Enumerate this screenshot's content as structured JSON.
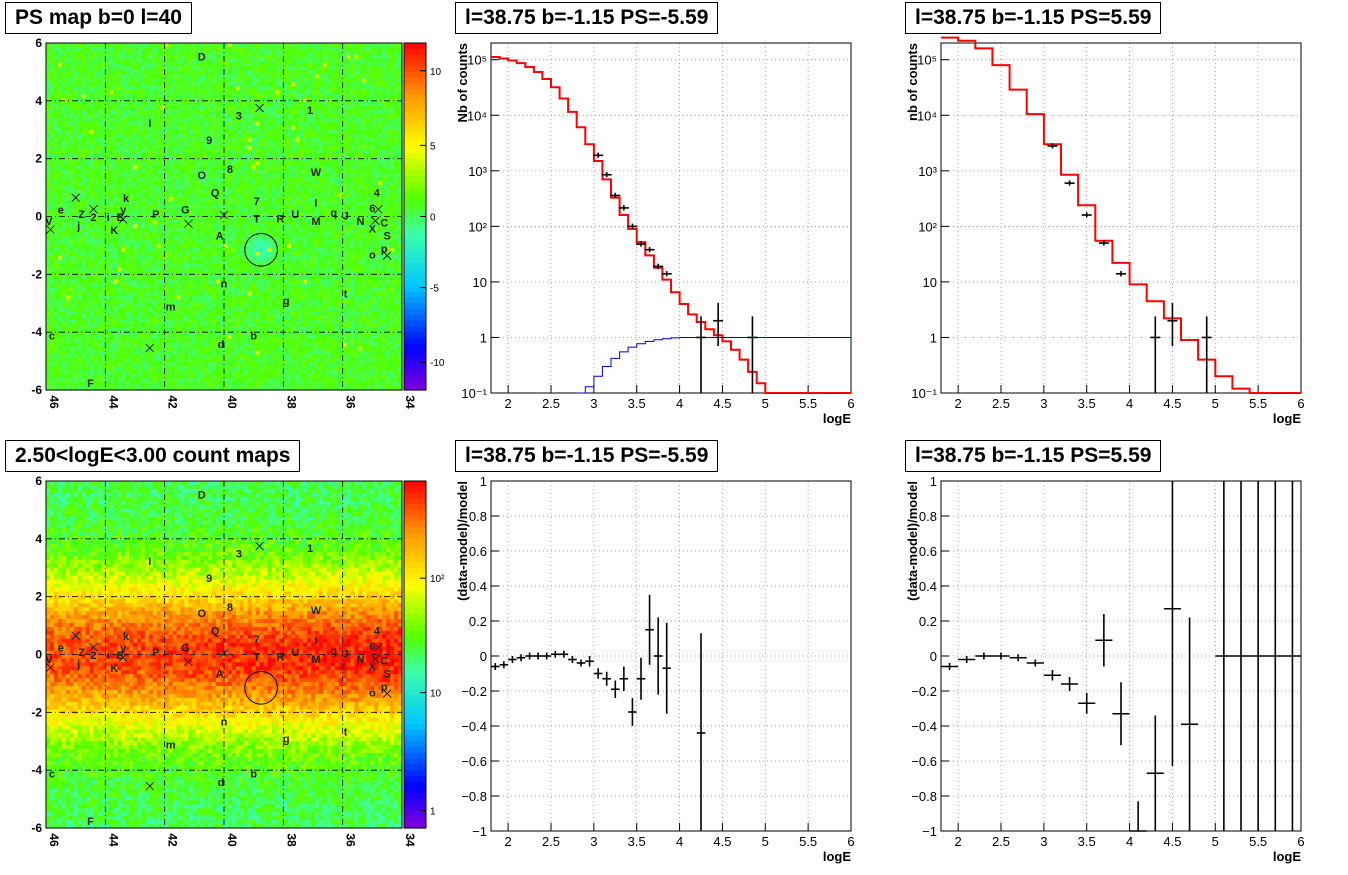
{
  "titles": {
    "map_top": "PS map b=0 l=40",
    "map_bottom": "2.50<logE<3.00 count maps",
    "spec_left": "l=38.75 b=-1.15 PS=-5.59",
    "spec_right": "l=38.75 b=-1.15 PS=5.59",
    "res_left": "l=38.75 b=-1.15 PS=-5.59",
    "res_right": "l=38.75 b=-1.15 PS=5.59"
  },
  "maps": {
    "xticks": [
      "46",
      "44",
      "42",
      "40",
      "38",
      "36",
      "34"
    ],
    "yticks": [
      "6",
      "4",
      "2",
      "0",
      "-2",
      "-4",
      "-6"
    ],
    "colorbar_top_ticks": [
      "10",
      "5",
      "0",
      "-5",
      "-10"
    ],
    "colorbar_bottom_ticks": [
      "10²",
      "10",
      "1"
    ],
    "labels": [
      {
        "t": "D",
        "l": 40.75,
        "b": 5.4
      },
      {
        "t": "I",
        "l": 42.5,
        "b": 3.1
      },
      {
        "t": "3",
        "l": 39.5,
        "b": 3.35
      },
      {
        "t": "1",
        "l": 37.1,
        "b": 3.55
      },
      {
        "t": "9",
        "l": 40.5,
        "b": 2.5
      },
      {
        "t": "8",
        "l": 39.8,
        "b": 1.5
      },
      {
        "t": "O",
        "l": 40.75,
        "b": 1.3
      },
      {
        "t": "W",
        "l": 36.9,
        "b": 1.4
      },
      {
        "t": "Q",
        "l": 40.3,
        "b": 0.7
      },
      {
        "t": "7",
        "l": 38.9,
        "b": 0.4
      },
      {
        "t": "4",
        "l": 34.85,
        "b": 0.7
      },
      {
        "t": "e",
        "l": 45.5,
        "b": 0.1
      },
      {
        "t": "k",
        "l": 43.3,
        "b": 0.5
      },
      {
        "t": "y",
        "l": 43.4,
        "b": 0.1
      },
      {
        "t": "G",
        "l": 41.3,
        "b": 0.1
      },
      {
        "t": "P",
        "l": 42.3,
        "b": -0.05
      },
      {
        "t": "U",
        "l": 37.6,
        "b": -0.05
      },
      {
        "t": "I",
        "l": 36.9,
        "b": 0.35
      },
      {
        "t": "q",
        "l": 36.3,
        "b": 0.0
      },
      {
        "t": "J",
        "l": 35.9,
        "b": -0.1
      },
      {
        "t": "6",
        "l": 35.0,
        "b": 0.15
      },
      {
        "t": "V",
        "l": 45.9,
        "b": -0.3
      },
      {
        "t": "Z",
        "l": 44.8,
        "b": -0.05
      },
      {
        "t": "2",
        "l": 44.4,
        "b": -0.15
      },
      {
        "t": "i",
        "l": 43.9,
        "b": -0.15
      },
      {
        "t": "E",
        "l": 43.5,
        "b": -0.15
      },
      {
        "t": "T",
        "l": 38.9,
        "b": -0.2
      },
      {
        "t": "R",
        "l": 38.1,
        "b": -0.2
      },
      {
        "t": "M",
        "l": 36.9,
        "b": -0.3
      },
      {
        "t": "N",
        "l": 35.4,
        "b": -0.3
      },
      {
        "t": "X",
        "l": 35.0,
        "b": -0.55
      },
      {
        "t": "C",
        "l": 34.6,
        "b": -0.35
      },
      {
        "t": "j",
        "l": 44.9,
        "b": -0.45
      },
      {
        "t": "K",
        "l": 43.7,
        "b": -0.6
      },
      {
        "t": "A",
        "l": 40.15,
        "b": -0.8
      },
      {
        "t": "S",
        "l": 34.5,
        "b": -0.8
      },
      {
        "t": "o",
        "l": 35.0,
        "b": -1.45
      },
      {
        "t": "p",
        "l": 34.6,
        "b": -1.25
      },
      {
        "t": "n",
        "l": 40.0,
        "b": -2.45
      },
      {
        "t": "t",
        "l": 35.9,
        "b": -2.8
      },
      {
        "t": "g",
        "l": 37.9,
        "b": -3.05
      },
      {
        "t": "m",
        "l": 41.8,
        "b": -3.25
      },
      {
        "t": "c",
        "l": 45.8,
        "b": -4.25
      },
      {
        "t": "b",
        "l": 39.0,
        "b": -4.25
      },
      {
        "t": "d",
        "l": 40.1,
        "b": -4.55
      },
      {
        "t": "F",
        "l": 44.5,
        "b": -5.9
      }
    ],
    "crosses": [
      {
        "l": 45.0,
        "b": 0.65
      },
      {
        "l": 44.4,
        "b": 0.25
      },
      {
        "l": 43.4,
        "b": -0.1
      },
      {
        "l": 41.2,
        "b": -0.25
      },
      {
        "l": 40.0,
        "b": 0.05
      },
      {
        "l": 38.8,
        "b": 3.75
      },
      {
        "l": 34.9,
        "b": -0.15
      },
      {
        "l": 34.8,
        "b": 0.25
      },
      {
        "l": 34.5,
        "b": -1.35
      },
      {
        "l": 42.5,
        "b": -4.55
      },
      {
        "l": 45.85,
        "b": -0.45
      }
    ],
    "circle": {
      "l": 38.75,
      "b": -1.15,
      "r": 0.5
    }
  },
  "spectra": {
    "xlabel": "logE",
    "xlim": [
      1.8,
      6.0
    ],
    "xticks": [
      "2",
      "2.5",
      "3",
      "3.5",
      "4",
      "4.5",
      "5",
      "5.5",
      "6"
    ],
    "ylim_log": [
      0.1,
      200000
    ],
    "ylabel_left": "Nb of counts",
    "ylabel_right": "nb of counts",
    "yticks": [
      "10⁵",
      "10⁴",
      "10³",
      "10²",
      "10",
      "1",
      "10⁻¹"
    ],
    "left_model_steps": [
      [
        1.8,
        112000
      ],
      [
        1.9,
        105000
      ],
      [
        2.0,
        97000
      ],
      [
        2.1,
        87000
      ],
      [
        2.2,
        74000
      ],
      [
        2.3,
        60000
      ],
      [
        2.4,
        45000
      ],
      [
        2.5,
        32000
      ],
      [
        2.6,
        20000
      ],
      [
        2.7,
        11500
      ],
      [
        2.8,
        6100
      ],
      [
        2.9,
        3000
      ],
      [
        3.0,
        1500
      ],
      [
        3.1,
        700
      ],
      [
        3.2,
        330
      ],
      [
        3.3,
        160
      ],
      [
        3.4,
        90
      ],
      [
        3.5,
        52
      ],
      [
        3.6,
        30
      ],
      [
        3.7,
        18
      ],
      [
        3.8,
        11
      ],
      [
        3.9,
        6.5
      ],
      [
        4.0,
        4
      ],
      [
        4.1,
        2.6
      ],
      [
        4.2,
        1.9
      ],
      [
        4.3,
        1.4
      ],
      [
        4.4,
        1.1
      ],
      [
        4.5,
        0.85
      ],
      [
        4.6,
        0.6
      ],
      [
        4.7,
        0.4
      ],
      [
        4.8,
        0.24
      ],
      [
        4.9,
        0.15
      ],
      [
        5.0,
        0.1
      ]
    ],
    "left_bkg_steps": [
      [
        2.8,
        0.1
      ],
      [
        2.9,
        0.13
      ],
      [
        3.0,
        0.2
      ],
      [
        3.1,
        0.3
      ],
      [
        3.2,
        0.42
      ],
      [
        3.3,
        0.55
      ],
      [
        3.4,
        0.67
      ],
      [
        3.5,
        0.77
      ],
      [
        3.6,
        0.85
      ],
      [
        3.7,
        0.91
      ],
      [
        3.8,
        0.95
      ],
      [
        3.9,
        0.98
      ],
      [
        4.0,
        1.0
      ]
    ],
    "left_data": [
      {
        "x": 3.05,
        "y": 1900
      },
      {
        "x": 3.15,
        "y": 850
      },
      {
        "x": 3.25,
        "y": 360
      },
      {
        "x": 3.35,
        "y": 215
      },
      {
        "x": 3.45,
        "y": 100
      },
      {
        "x": 3.55,
        "y": 48
      },
      {
        "x": 3.65,
        "y": 38
      },
      {
        "x": 3.75,
        "y": 19
      },
      {
        "x": 3.85,
        "y": 14
      },
      {
        "x": 4.25,
        "y": 1,
        "lo": 0.1,
        "hi": 2.4
      },
      {
        "x": 4.45,
        "y": 2,
        "lo": 0.7,
        "hi": 4.2
      },
      {
        "x": 4.85,
        "y": 1,
        "lo": 0.1,
        "hi": 2.4
      }
    ],
    "right_model_steps": [
      [
        1.8,
        250000
      ],
      [
        2.0,
        220000
      ],
      [
        2.2,
        160000
      ],
      [
        2.4,
        80000
      ],
      [
        2.6,
        29000
      ],
      [
        2.8,
        10500
      ],
      [
        3.0,
        3000
      ],
      [
        3.2,
        850
      ],
      [
        3.4,
        240
      ],
      [
        3.6,
        55
      ],
      [
        3.8,
        22
      ],
      [
        4.0,
        9
      ],
      [
        4.2,
        4.5
      ],
      [
        4.4,
        2.2
      ],
      [
        4.6,
        0.9
      ],
      [
        4.8,
        0.4
      ],
      [
        5.0,
        0.2
      ],
      [
        5.2,
        0.12
      ],
      [
        5.4,
        0.1
      ]
    ],
    "right_data": [
      {
        "x": 3.1,
        "y": 2800
      },
      {
        "x": 3.3,
        "y": 600
      },
      {
        "x": 3.5,
        "y": 160
      },
      {
        "x": 3.7,
        "y": 50
      },
      {
        "x": 3.9,
        "y": 14
      },
      {
        "x": 4.3,
        "y": 1,
        "lo": 0.1,
        "hi": 2.4
      },
      {
        "x": 4.5,
        "y": 2,
        "lo": 0.7,
        "hi": 4.2
      },
      {
        "x": 4.9,
        "y": 1,
        "lo": 0.1,
        "hi": 2.4
      }
    ]
  },
  "residuals": {
    "xlabel": "logE",
    "ylabel": "(data-model)/model",
    "xlim": [
      1.8,
      6.0
    ],
    "ylim": [
      -1,
      1
    ],
    "yticks": [
      "1",
      "0.8",
      "0.6",
      "0.4",
      "0.2",
      "0",
      "−0.2",
      "−0.4",
      "−0.6",
      "−0.8",
      "−1"
    ],
    "left_points": [
      {
        "x": 1.85,
        "y": -0.06,
        "e": 0.02
      },
      {
        "x": 1.95,
        "y": -0.05,
        "e": 0.02
      },
      {
        "x": 2.05,
        "y": -0.02,
        "e": 0.02
      },
      {
        "x": 2.15,
        "y": -0.01,
        "e": 0.02
      },
      {
        "x": 2.25,
        "y": 0.0,
        "e": 0.02
      },
      {
        "x": 2.35,
        "y": 0.0,
        "e": 0.02
      },
      {
        "x": 2.45,
        "y": 0.0,
        "e": 0.02
      },
      {
        "x": 2.55,
        "y": 0.01,
        "e": 0.02
      },
      {
        "x": 2.65,
        "y": 0.01,
        "e": 0.02
      },
      {
        "x": 2.75,
        "y": -0.02,
        "e": 0.02
      },
      {
        "x": 2.85,
        "y": -0.04,
        "e": 0.02
      },
      {
        "x": 2.95,
        "y": -0.03,
        "e": 0.03
      },
      {
        "x": 3.05,
        "y": -0.1,
        "e": 0.03
      },
      {
        "x": 3.15,
        "y": -0.13,
        "e": 0.04
      },
      {
        "x": 3.25,
        "y": -0.19,
        "e": 0.05
      },
      {
        "x": 3.35,
        "y": -0.13,
        "e": 0.07
      },
      {
        "x": 3.45,
        "y": -0.32,
        "e": 0.08
      },
      {
        "x": 3.55,
        "y": -0.13,
        "e": 0.12
      },
      {
        "x": 3.65,
        "y": 0.15,
        "e": 0.2
      },
      {
        "x": 3.75,
        "y": 0.0,
        "e": 0.22
      },
      {
        "x": 3.85,
        "y": -0.07,
        "e": 0.26
      },
      {
        "x": 4.25,
        "y": -0.44,
        "e": 0.57
      }
    ],
    "right_points": [
      {
        "x": 1.9,
        "y": -0.06,
        "e": 0.02
      },
      {
        "x": 2.1,
        "y": -0.02,
        "e": 0.02
      },
      {
        "x": 2.3,
        "y": 0.0,
        "e": 0.02
      },
      {
        "x": 2.5,
        "y": 0.0,
        "e": 0.02
      },
      {
        "x": 2.7,
        "y": -0.01,
        "e": 0.02
      },
      {
        "x": 2.9,
        "y": -0.04,
        "e": 0.02
      },
      {
        "x": 3.1,
        "y": -0.11,
        "e": 0.03
      },
      {
        "x": 3.3,
        "y": -0.16,
        "e": 0.04
      },
      {
        "x": 3.5,
        "y": -0.27,
        "e": 0.06
      },
      {
        "x": 3.7,
        "y": 0.09,
        "e": 0.15
      },
      {
        "x": 3.9,
        "y": -0.33,
        "e": 0.18
      },
      {
        "x": 4.1,
        "y": -1.0,
        "e": 0.17
      },
      {
        "x": 4.3,
        "y": -0.67,
        "e": 0.33
      },
      {
        "x": 4.5,
        "y": 0.27,
        "e": 0.9
      },
      {
        "x": 4.7,
        "y": -0.39,
        "e": 0.61
      },
      {
        "x": 5.1,
        "y": 0.0,
        "e": 1.5
      },
      {
        "x": 5.3,
        "y": 0.0,
        "e": 1.5
      },
      {
        "x": 5.5,
        "y": 0.0,
        "e": 1.5
      },
      {
        "x": 5.7,
        "y": 0.0,
        "e": 1.5
      },
      {
        "x": 5.9,
        "y": 0.0,
        "e": 1.5
      }
    ]
  },
  "colors": {
    "model": "#ff0000",
    "background": "#0000cc",
    "data": "#000000",
    "grid": "#999999"
  }
}
